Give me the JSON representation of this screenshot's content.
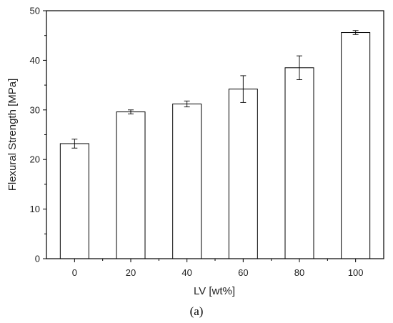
{
  "chart_data": {
    "type": "bar",
    "title": "",
    "xlabel": "LV [wt%]",
    "ylabel": "Flexural Strength [MPa]",
    "categories": [
      "0",
      "20",
      "40",
      "60",
      "80",
      "100"
    ],
    "values": [
      23.2,
      29.6,
      31.2,
      34.2,
      38.5,
      45.6
    ],
    "errors": [
      0.9,
      0.4,
      0.6,
      2.7,
      2.4,
      0.4
    ],
    "ylim": [
      0,
      50
    ],
    "yticks": [
      "0",
      "10",
      "20",
      "30",
      "40",
      "50"
    ],
    "grid": false,
    "legend": "none",
    "bar_fill": "#ffffff",
    "bar_stroke": "#000000",
    "caption": "(a)"
  }
}
